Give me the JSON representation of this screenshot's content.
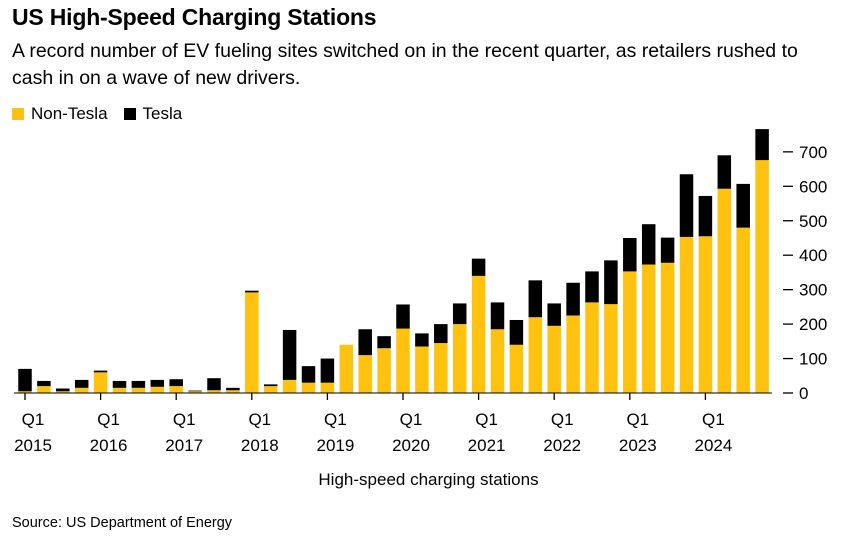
{
  "chart_data": {
    "type": "bar",
    "stacked": true,
    "title": "US High-Speed Charging Stations",
    "subtitle": "A record number of EV fueling sites switched on in the recent quarter, as retailers rushed to cash in on a wave of new drivers.",
    "xlabel": "High-speed charging stations",
    "ylabel": "",
    "ylim": [
      0,
      770
    ],
    "yticks": [
      0,
      100,
      200,
      300,
      400,
      500,
      600,
      700
    ],
    "axis_side": "right",
    "legend_position": "top-left",
    "source": "Source: US Department of Energy",
    "categories": [
      "Q1 2015",
      "Q2 2015",
      "Q3 2015",
      "Q4 2015",
      "Q1 2016",
      "Q2 2016",
      "Q3 2016",
      "Q4 2016",
      "Q1 2017",
      "Q2 2017",
      "Q3 2017",
      "Q4 2017",
      "Q1 2018",
      "Q2 2018",
      "Q3 2018",
      "Q4 2018",
      "Q1 2019",
      "Q2 2019",
      "Q3 2019",
      "Q4 2019",
      "Q1 2020",
      "Q2 2020",
      "Q3 2020",
      "Q4 2020",
      "Q1 2021",
      "Q2 2021",
      "Q3 2021",
      "Q4 2021",
      "Q1 2022",
      "Q2 2022",
      "Q3 2022",
      "Q4 2022",
      "Q1 2023",
      "Q2 2023",
      "Q3 2023",
      "Q4 2023",
      "Q1 2024",
      "Q2 2024",
      "Q3 2024",
      "Q4 2024"
    ],
    "xtick_labels": [
      {
        "index": 0,
        "q": "Q1",
        "year": "2015"
      },
      {
        "index": 4,
        "q": "Q1",
        "year": "2016"
      },
      {
        "index": 8,
        "q": "Q1",
        "year": "2017"
      },
      {
        "index": 12,
        "q": "Q1",
        "year": "2018"
      },
      {
        "index": 16,
        "q": "Q1",
        "year": "2019"
      },
      {
        "index": 20,
        "q": "Q1",
        "year": "2020"
      },
      {
        "index": 24,
        "q": "Q1",
        "year": "2021"
      },
      {
        "index": 28,
        "q": "Q1",
        "year": "2022"
      },
      {
        "index": 32,
        "q": "Q1",
        "year": "2023"
      },
      {
        "index": 36,
        "q": "Q1",
        "year": "2024"
      }
    ],
    "series": [
      {
        "name": "Non-Tesla",
        "color": "#ffc20e",
        "values": [
          5,
          20,
          5,
          15,
          60,
          15,
          15,
          18,
          20,
          5,
          8,
          8,
          292,
          20,
          38,
          30,
          30,
          140,
          110,
          130,
          187,
          135,
          145,
          200,
          340,
          185,
          140,
          220,
          195,
          225,
          263,
          258,
          353,
          373,
          378,
          453,
          455,
          593,
          480,
          676
        ]
      },
      {
        "name": "Tesla",
        "color": "#000000",
        "values": [
          65,
          15,
          8,
          23,
          5,
          20,
          20,
          20,
          20,
          2,
          35,
          7,
          5,
          5,
          145,
          48,
          70,
          0,
          75,
          35,
          70,
          38,
          55,
          60,
          50,
          78,
          72,
          107,
          65,
          95,
          90,
          127,
          97,
          117,
          73,
          182,
          117,
          97,
          127,
          90
        ]
      }
    ]
  }
}
